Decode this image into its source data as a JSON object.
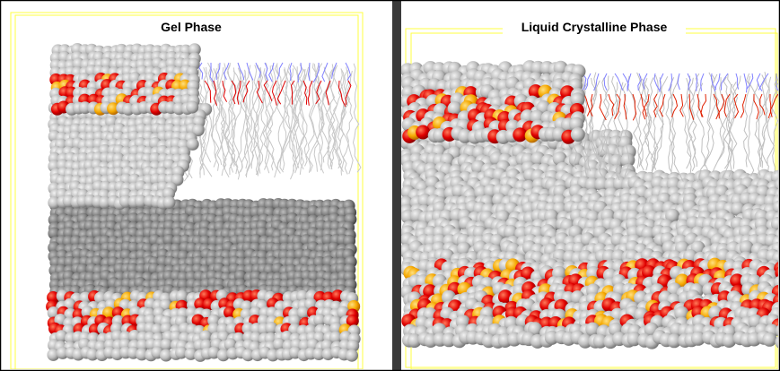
{
  "panels": [
    {
      "title": "Gel Phase"
    },
    {
      "title": "Liquid Crystalline Phase"
    }
  ]
}
